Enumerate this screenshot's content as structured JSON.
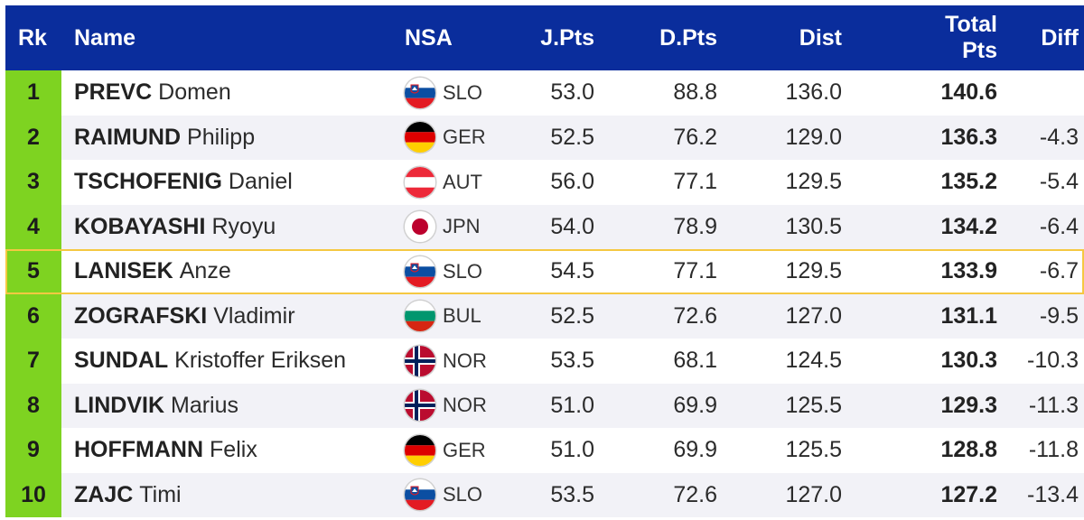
{
  "header": {
    "rk": "Rk",
    "name": "Name",
    "nsa": "NSA",
    "jpts": "J.Pts",
    "dpts": "D.Pts",
    "dist": "Dist",
    "total_line1": "Total",
    "total_line2": "Pts",
    "diff": "Diff"
  },
  "colors": {
    "header_bg": "#0a2d9c",
    "rank_bg": "#7ed321",
    "highlight_border": "#f5c842",
    "stripe": "#f2f2f7"
  },
  "highlighted_rank": "5",
  "rows": [
    {
      "rk": "1",
      "last": "PREVC",
      "first": "Domen",
      "nsa": "SLO",
      "flag": "slo-flag-icon",
      "jpts": "53.0",
      "dpts": "88.8",
      "dist": "136.0",
      "total": "140.6",
      "diff": ""
    },
    {
      "rk": "2",
      "last": "RAIMUND",
      "first": "Philipp",
      "nsa": "GER",
      "flag": "ger-flag-icon",
      "jpts": "52.5",
      "dpts": "76.2",
      "dist": "129.0",
      "total": "136.3",
      "diff": "-4.3"
    },
    {
      "rk": "3",
      "last": "TSCHOFENIG",
      "first": "Daniel",
      "nsa": "AUT",
      "flag": "aut-flag-icon",
      "jpts": "56.0",
      "dpts": "77.1",
      "dist": "129.5",
      "total": "135.2",
      "diff": "-5.4"
    },
    {
      "rk": "4",
      "last": "KOBAYASHI",
      "first": "Ryoyu",
      "nsa": "JPN",
      "flag": "jpn-flag-icon",
      "jpts": "54.0",
      "dpts": "78.9",
      "dist": "130.5",
      "total": "134.2",
      "diff": "-6.4"
    },
    {
      "rk": "5",
      "last": "LANISEK",
      "first": "Anze",
      "nsa": "SLO",
      "flag": "slo-flag-icon",
      "jpts": "54.5",
      "dpts": "77.1",
      "dist": "129.5",
      "total": "133.9",
      "diff": "-6.7"
    },
    {
      "rk": "6",
      "last": "ZOGRAFSKI",
      "first": "Vladimir",
      "nsa": "BUL",
      "flag": "bul-flag-icon",
      "jpts": "52.5",
      "dpts": "72.6",
      "dist": "127.0",
      "total": "131.1",
      "diff": "-9.5"
    },
    {
      "rk": "7",
      "last": "SUNDAL",
      "first": "Kristoffer Eriksen",
      "nsa": "NOR",
      "flag": "nor-flag-icon",
      "jpts": "53.5",
      "dpts": "68.1",
      "dist": "124.5",
      "total": "130.3",
      "diff": "-10.3"
    },
    {
      "rk": "8",
      "last": "LINDVIK",
      "first": "Marius",
      "nsa": "NOR",
      "flag": "nor-flag-icon",
      "jpts": "51.0",
      "dpts": "69.9",
      "dist": "125.5",
      "total": "129.3",
      "diff": "-11.3"
    },
    {
      "rk": "9",
      "last": "HOFFMANN",
      "first": "Felix",
      "nsa": "GER",
      "flag": "ger-flag-icon",
      "jpts": "51.0",
      "dpts": "69.9",
      "dist": "125.5",
      "total": "128.8",
      "diff": "-11.8"
    },
    {
      "rk": "10",
      "last": "ZAJC",
      "first": "Timi",
      "nsa": "SLO",
      "flag": "slo-flag-icon",
      "jpts": "53.5",
      "dpts": "72.6",
      "dist": "127.0",
      "total": "127.2",
      "diff": "-13.4"
    }
  ]
}
